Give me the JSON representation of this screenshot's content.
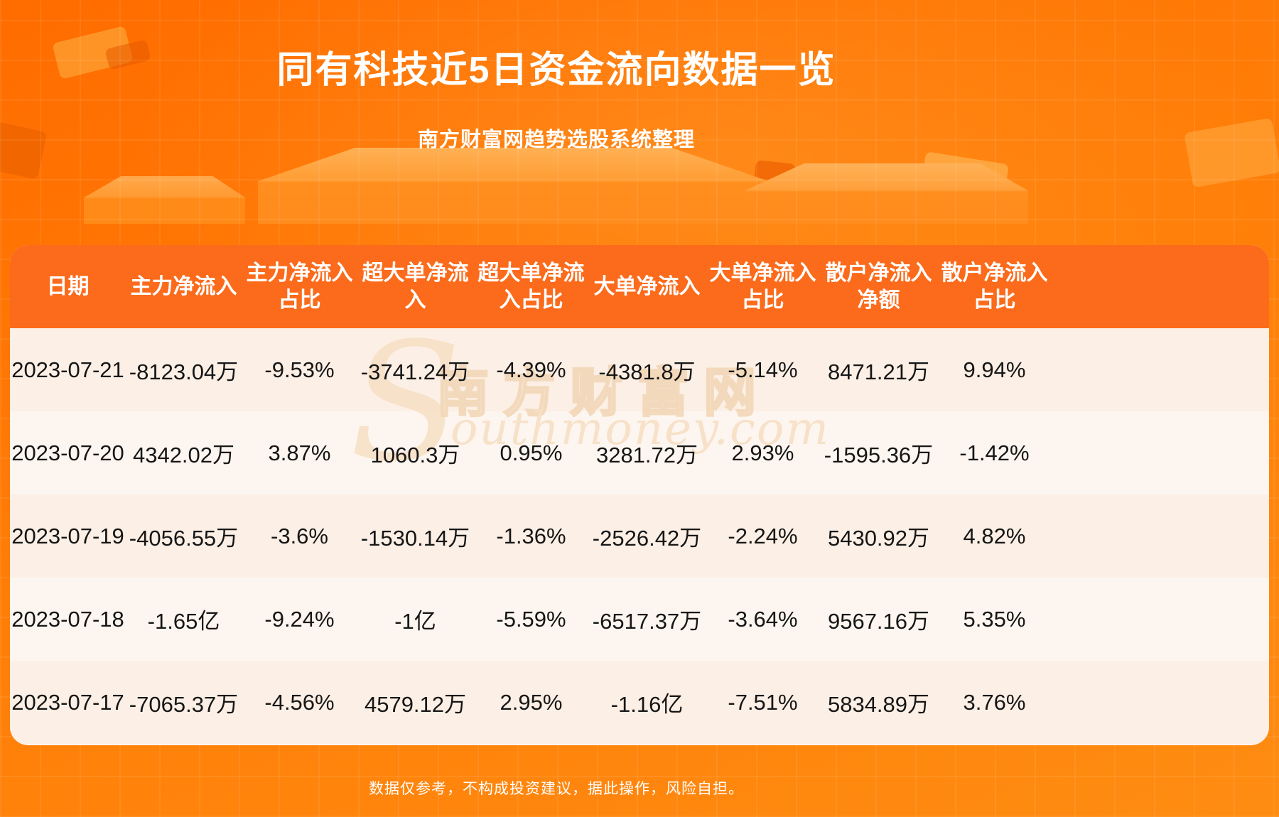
{
  "page": {
    "title": "同有科技近5日资金流向数据一览",
    "subtitle": "南方财富网趋势选股系统整理",
    "disclaimer": "数据仅参考，不构成投资建议，据此操作，风险自担。"
  },
  "watermark": {
    "flourish": "S",
    "brand_cn": "南方财富网",
    "brand_en": "outhmoney.com"
  },
  "colors": {
    "background_orange": "#ff7a05",
    "header_band_orange": "#fb6b1b",
    "row_cream_dark": "#fcefe5",
    "row_cream_light": "#fdf6f0",
    "text_dark": "#161616",
    "watermark_tan": "#f6dcbe"
  },
  "table": {
    "headers_display": [
      "日期",
      "主力净流入",
      "主力净流入\n占比",
      "超大单净流\n入",
      "超大单净流\n入占比",
      "大单净流入",
      "大单净流入\n占比",
      "散户净流入\n净额",
      "散户净流入\n占比"
    ]
  },
  "chart_data": {
    "type": "table",
    "title": "同有科技近5日资金流向数据一览",
    "source_note": "南方财富网趋势选股系统整理",
    "columns": [
      "日期",
      "主力净流入",
      "主力净流入占比",
      "超大单净流入",
      "超大单净流入占比",
      "大单净流入",
      "大单净流入占比",
      "散户净流入净额",
      "散户净流入占比"
    ],
    "rows": [
      [
        "2023-07-21",
        "-8123.04万",
        "-9.53%",
        "-3741.24万",
        "-4.39%",
        "-4381.8万",
        "-5.14%",
        "8471.21万",
        "9.94%"
      ],
      [
        "2023-07-20",
        "4342.02万",
        "3.87%",
        "1060.3万",
        "0.95%",
        "3281.72万",
        "2.93%",
        "-1595.36万",
        "-1.42%"
      ],
      [
        "2023-07-19",
        "-4056.55万",
        "-3.6%",
        "-1530.14万",
        "-1.36%",
        "-2526.42万",
        "-2.24%",
        "5430.92万",
        "4.82%"
      ],
      [
        "2023-07-18",
        "-1.65亿",
        "-9.24%",
        "-1亿",
        "-5.59%",
        "-6517.37万",
        "-3.64%",
        "9567.16万",
        "5.35%"
      ],
      [
        "2023-07-17",
        "-7065.37万",
        "-4.56%",
        "4579.12万",
        "2.95%",
        "-1.16亿",
        "-7.51%",
        "5834.89万",
        "3.76%"
      ]
    ]
  }
}
